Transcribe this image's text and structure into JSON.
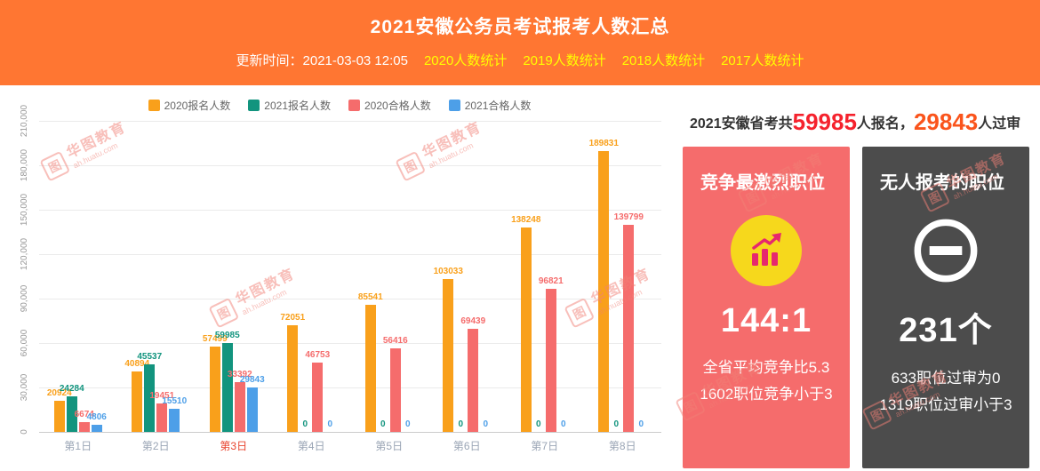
{
  "header": {
    "title": "2021安徽公务员考试报考人数汇总",
    "update_label": "更新时间：2021-03-03 12:05",
    "links": [
      "2020人数统计",
      "2019人数统计",
      "2018人数统计",
      "2017人数统计"
    ]
  },
  "chart_data": {
    "type": "bar",
    "title": "",
    "categories": [
      "第1日",
      "第2日",
      "第3日",
      "第4日",
      "第5日",
      "第6日",
      "第7日",
      "第8日"
    ],
    "highlight_category": "第3日",
    "series": [
      {
        "name": "2020报名人数",
        "color": "#F9A01B",
        "values": [
          20924,
          40894,
          57499,
          72051,
          85541,
          103033,
          138248,
          189831
        ]
      },
      {
        "name": "2021报名人数",
        "color": "#12947E",
        "values": [
          24284,
          45537,
          59985,
          0,
          0,
          0,
          0,
          0
        ]
      },
      {
        "name": "2020合格人数",
        "color": "#F56C6C",
        "values": [
          6674,
          19451,
          33392,
          46753,
          56416,
          69439,
          96821,
          139799
        ]
      },
      {
        "name": "2021合格人数",
        "color": "#4D9FE8",
        "values": [
          4806,
          15510,
          29843,
          0,
          0,
          0,
          0,
          0
        ]
      }
    ],
    "ylim": [
      0,
      210000
    ],
    "yticks": [
      "210,000",
      "180,000",
      "150,000",
      "120,000",
      "90,000",
      "60,000",
      "30,000",
      "0"
    ],
    "legend_position": "top",
    "grid": true,
    "xlabel": "",
    "ylabel": ""
  },
  "summary": {
    "prefix": "2021安徽省考共",
    "applicants": "59985",
    "middle": "人报名，",
    "approved": "29843",
    "suffix": "人过审"
  },
  "cards": {
    "competition": {
      "title": "竞争最激烈职位",
      "ratio": "144:1",
      "line1": "全省平均竞争比5.3",
      "line2": "1602职位竞争小于3",
      "accent": "#F56C6C",
      "icon_bg": "#F6D81C",
      "icon_color": "#E6286E"
    },
    "no_applicants": {
      "title": "无人报考的职位",
      "count": "231个",
      "line1": "633职位过审为0",
      "line2": "1319职位过审小于3",
      "accent": "#4C4C4C"
    }
  },
  "watermark": {
    "name": "华图教育",
    "site": "ah.huatu.com",
    "logo": "图"
  }
}
